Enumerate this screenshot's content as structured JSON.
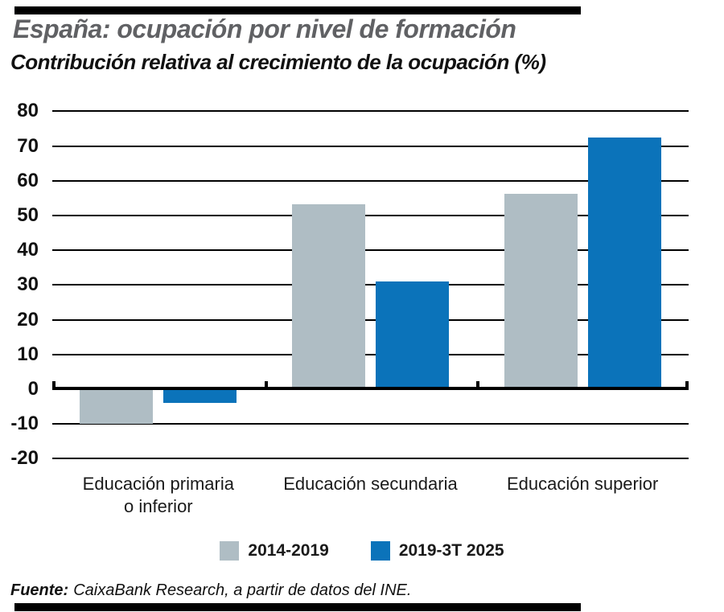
{
  "header": {
    "title": "España: ocupación por nivel de formación",
    "subtitle": "Contribución relativa al crecimiento de la ocupación (%)",
    "title_color": "#606164"
  },
  "chart_data": {
    "type": "bar",
    "title": "España: ocupación por nivel de formación",
    "subtitle": "Contribución relativa al crecimiento de la ocupación (%)",
    "categories": [
      "Educación primaria o inferior",
      "Educación secundaria",
      "Educación superior"
    ],
    "category_lines": [
      [
        "Educación primaria",
        "o inferior"
      ],
      [
        "Educación secundaria"
      ],
      [
        "Educación superior"
      ]
    ],
    "series": [
      {
        "name": "2014-2019",
        "color": "#afbdc4",
        "values": [
          -9.9,
          53.2,
          56.3
        ]
      },
      {
        "name": "2019-3T 2025",
        "color": "#0b73ba",
        "values": [
          -3.9,
          31.0,
          72.4
        ]
      }
    ],
    "ylim": [
      -20,
      80
    ],
    "yticks": [
      80,
      70,
      60,
      50,
      40,
      30,
      20,
      10,
      0,
      -10,
      -20
    ],
    "grid": true,
    "gridline_color": "#000000",
    "legend_position": "bottom",
    "xlabel": "",
    "ylabel": ""
  },
  "footer": {
    "source_label": "Fuente:",
    "source_text": "CaixaBank Research, a partir de datos del INE."
  }
}
